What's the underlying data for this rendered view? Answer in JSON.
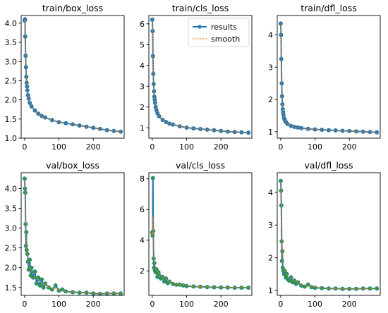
{
  "legend": {
    "results_label": "results",
    "smooth_label": "smooth"
  },
  "colors": {
    "results": "#1f77b4",
    "smooth": "#ff7f0e",
    "marker_val": "#2ca02c",
    "axis": "#000000"
  },
  "chart_data": [
    {
      "type": "line",
      "title": "train/box_loss",
      "xlim": [
        -10,
        290
      ],
      "ylim": [
        1.0,
        4.2
      ],
      "yticks": [
        1.0,
        1.5,
        2.0,
        2.5,
        3.0,
        3.5,
        4.0
      ],
      "ytick_labels": [
        "1.0",
        "1.5",
        "2.0",
        "2.5",
        "3.0",
        "3.5",
        "4.0"
      ],
      "xticks": [
        0,
        100,
        200
      ],
      "xtick_labels": [
        "0",
        "100",
        "200"
      ],
      "legend": false,
      "series": [
        {
          "name": "results",
          "x": [
            0,
            1,
            2,
            3,
            4,
            5,
            6,
            7,
            8,
            10,
            12,
            15,
            20,
            30,
            40,
            50,
            60,
            80,
            100,
            120,
            140,
            160,
            180,
            200,
            220,
            240,
            260,
            280
          ],
          "y": [
            4.07,
            4.1,
            3.65,
            3.15,
            2.85,
            2.6,
            2.45,
            2.35,
            2.25,
            2.12,
            2.03,
            1.92,
            1.83,
            1.72,
            1.64,
            1.58,
            1.54,
            1.47,
            1.42,
            1.39,
            1.36,
            1.33,
            1.3,
            1.27,
            1.24,
            1.21,
            1.19,
            1.17
          ]
        },
        {
          "name": "smooth",
          "x": [
            0,
            1,
            2,
            3,
            4,
            5,
            6,
            7,
            8,
            10,
            12,
            15,
            20,
            30,
            40,
            50,
            60,
            80,
            100,
            120,
            140,
            160,
            180,
            200,
            220,
            240,
            260,
            280
          ],
          "y": [
            4.07,
            4.1,
            3.65,
            3.15,
            2.85,
            2.6,
            2.45,
            2.35,
            2.25,
            2.12,
            2.03,
            1.92,
            1.83,
            1.72,
            1.64,
            1.58,
            1.54,
            1.47,
            1.42,
            1.39,
            1.36,
            1.33,
            1.3,
            1.27,
            1.24,
            1.21,
            1.19,
            1.17
          ]
        }
      ]
    },
    {
      "type": "line",
      "title": "train/cls_loss",
      "xlim": [
        -10,
        290
      ],
      "ylim": [
        0.5,
        6.4
      ],
      "yticks": [
        1,
        2,
        3,
        4,
        5,
        6
      ],
      "ytick_labels": [
        "1",
        "2",
        "3",
        "4",
        "5",
        "6"
      ],
      "xticks": [
        0,
        100,
        200
      ],
      "xtick_labels": [
        "0",
        "100",
        "200"
      ],
      "legend": true,
      "series": [
        {
          "name": "results",
          "x": [
            0,
            1,
            2,
            3,
            4,
            5,
            6,
            7,
            8,
            10,
            12,
            15,
            20,
            30,
            40,
            50,
            60,
            80,
            100,
            120,
            140,
            160,
            180,
            200,
            220,
            240,
            260,
            280
          ],
          "y": [
            6.2,
            5.65,
            4.45,
            3.6,
            3.1,
            2.75,
            2.5,
            2.35,
            2.2,
            2.0,
            1.85,
            1.7,
            1.55,
            1.38,
            1.28,
            1.2,
            1.15,
            1.07,
            1.01,
            0.97,
            0.94,
            0.91,
            0.88,
            0.85,
            0.82,
            0.8,
            0.78,
            0.76
          ]
        },
        {
          "name": "smooth",
          "x": [
            0,
            1,
            2,
            3,
            4,
            5,
            6,
            7,
            8,
            10,
            12,
            15,
            20,
            30,
            40,
            50,
            60,
            80,
            100,
            120,
            140,
            160,
            180,
            200,
            220,
            240,
            260,
            280
          ],
          "y": [
            6.2,
            5.65,
            4.45,
            3.6,
            3.1,
            2.75,
            2.5,
            2.35,
            2.2,
            2.0,
            1.85,
            1.7,
            1.55,
            1.38,
            1.28,
            1.2,
            1.15,
            1.07,
            1.01,
            0.97,
            0.94,
            0.91,
            0.88,
            0.85,
            0.82,
            0.8,
            0.78,
            0.76
          ]
        }
      ]
    },
    {
      "type": "line",
      "title": "train/dfl_loss",
      "xlim": [
        -10,
        290
      ],
      "ylim": [
        0.8,
        4.6
      ],
      "yticks": [
        1,
        2,
        3,
        4
      ],
      "ytick_labels": [
        "1",
        "2",
        "3",
        "4"
      ],
      "xticks": [
        0,
        100,
        200
      ],
      "xtick_labels": [
        "0",
        "100",
        "200"
      ],
      "legend": false,
      "series": [
        {
          "name": "results",
          "x": [
            0,
            1,
            2,
            3,
            4,
            5,
            6,
            7,
            8,
            10,
            12,
            15,
            20,
            30,
            40,
            50,
            60,
            80,
            100,
            120,
            140,
            160,
            180,
            200,
            220,
            240,
            260,
            280
          ],
          "y": [
            4.35,
            4.0,
            3.25,
            2.5,
            2.1,
            1.85,
            1.7,
            1.6,
            1.52,
            1.42,
            1.36,
            1.3,
            1.24,
            1.18,
            1.15,
            1.13,
            1.11,
            1.09,
            1.07,
            1.06,
            1.05,
            1.04,
            1.03,
            1.02,
            1.01,
            1.0,
            0.99,
            0.98
          ]
        },
        {
          "name": "smooth",
          "x": [
            0,
            1,
            2,
            3,
            4,
            5,
            6,
            7,
            8,
            10,
            12,
            15,
            20,
            30,
            40,
            50,
            60,
            80,
            100,
            120,
            140,
            160,
            180,
            200,
            220,
            240,
            260,
            280
          ],
          "y": [
            4.35,
            4.0,
            3.25,
            2.5,
            2.1,
            1.85,
            1.7,
            1.6,
            1.52,
            1.42,
            1.36,
            1.3,
            1.24,
            1.18,
            1.15,
            1.13,
            1.11,
            1.09,
            1.07,
            1.06,
            1.05,
            1.04,
            1.03,
            1.02,
            1.01,
            1.0,
            0.99,
            0.98
          ]
        }
      ]
    },
    {
      "type": "line",
      "title": "val/box_loss",
      "xlim": [
        -10,
        290
      ],
      "ylim": [
        1.3,
        4.4
      ],
      "yticks": [
        1.5,
        2.0,
        2.5,
        3.0,
        3.5,
        4.0
      ],
      "ytick_labels": [
        "1.5",
        "2.0",
        "2.5",
        "3.0",
        "3.5",
        "4.0"
      ],
      "xticks": [
        0,
        100,
        200
      ],
      "xtick_labels": [
        "0",
        "100",
        "200"
      ],
      "legend": false,
      "series": [
        {
          "name": "results",
          "x": [
            0,
            1,
            2,
            3,
            4,
            5,
            6,
            8,
            10,
            12,
            15,
            18,
            20,
            25,
            30,
            35,
            40,
            45,
            50,
            55,
            60,
            70,
            80,
            90,
            100,
            110,
            120,
            140,
            160,
            180,
            200,
            220,
            240,
            260,
            280
          ],
          "y": [
            4.25,
            4.0,
            3.9,
            3.1,
            2.55,
            2.9,
            2.45,
            2.35,
            2.15,
            1.95,
            2.2,
            1.8,
            2.0,
            1.75,
            1.9,
            1.6,
            1.75,
            1.55,
            1.7,
            1.5,
            1.6,
            1.5,
            1.45,
            1.55,
            1.42,
            1.45,
            1.4,
            1.38,
            1.37,
            1.37,
            1.35,
            1.34,
            1.35,
            1.35,
            1.35
          ]
        },
        {
          "name": "smooth",
          "x": [
            0,
            1,
            2,
            3,
            4,
            5,
            6,
            8,
            10,
            12,
            15,
            18,
            20,
            25,
            30,
            35,
            40,
            45,
            50,
            55,
            60,
            70,
            80,
            90,
            100,
            110,
            120,
            140,
            160,
            180,
            200,
            220,
            240,
            260,
            280
          ],
          "y": [
            4.2,
            3.95,
            3.7,
            3.2,
            2.8,
            2.7,
            2.55,
            2.4,
            2.22,
            2.08,
            2.05,
            1.92,
            1.9,
            1.82,
            1.8,
            1.72,
            1.7,
            1.63,
            1.62,
            1.57,
            1.56,
            1.51,
            1.48,
            1.47,
            1.44,
            1.43,
            1.41,
            1.39,
            1.38,
            1.37,
            1.36,
            1.35,
            1.35,
            1.35,
            1.35
          ]
        }
      ]
    },
    {
      "type": "line",
      "title": "val/cls_loss",
      "xlim": [
        -10,
        290
      ],
      "ylim": [
        0.4,
        8.4
      ],
      "yticks": [
        2,
        4,
        6,
        8
      ],
      "ytick_labels": [
        "2",
        "4",
        "6",
        "8"
      ],
      "xticks": [
        0,
        100,
        200
      ],
      "xtick_labels": [
        "0",
        "100",
        "200"
      ],
      "legend": false,
      "series": [
        {
          "name": "results",
          "x": [
            0,
            1,
            2,
            3,
            4,
            5,
            6,
            8,
            10,
            12,
            15,
            18,
            20,
            25,
            30,
            35,
            40,
            45,
            50,
            60,
            70,
            80,
            90,
            100,
            120,
            140,
            160,
            180,
            200,
            220,
            240,
            260,
            280
          ],
          "y": [
            4.5,
            4.3,
            8.05,
            4.6,
            2.8,
            2.2,
            2.5,
            2.0,
            1.9,
            2.1,
            1.6,
            1.9,
            1.7,
            1.5,
            1.6,
            1.3,
            1.5,
            1.2,
            1.3,
            1.15,
            1.1,
            1.1,
            1.05,
            1.0,
            0.98,
            0.96,
            0.94,
            0.93,
            0.92,
            0.91,
            0.9,
            0.9,
            0.9
          ]
        },
        {
          "name": "smooth",
          "x": [
            0,
            1,
            2,
            3,
            4,
            5,
            6,
            8,
            10,
            12,
            15,
            18,
            20,
            25,
            30,
            35,
            40,
            45,
            50,
            60,
            70,
            80,
            90,
            100,
            120,
            140,
            160,
            180,
            200,
            220,
            240,
            260,
            280
          ],
          "y": [
            4.5,
            4.4,
            5.5,
            4.5,
            3.4,
            2.8,
            2.6,
            2.3,
            2.1,
            2.05,
            1.85,
            1.85,
            1.75,
            1.62,
            1.58,
            1.45,
            1.45,
            1.35,
            1.32,
            1.22,
            1.15,
            1.12,
            1.07,
            1.03,
            0.99,
            0.96,
            0.94,
            0.93,
            0.92,
            0.91,
            0.9,
            0.9,
            0.9
          ]
        }
      ]
    },
    {
      "type": "line",
      "title": "val/dfl_loss",
      "xlim": [
        -10,
        290
      ],
      "ylim": [
        0.85,
        4.6
      ],
      "yticks": [
        1,
        2,
        3,
        4
      ],
      "ytick_labels": [
        "1",
        "2",
        "3",
        "4"
      ],
      "xticks": [
        0,
        100,
        200
      ],
      "xtick_labels": [
        "0",
        "100",
        "200"
      ],
      "legend": false,
      "series": [
        {
          "name": "results",
          "x": [
            0,
            1,
            2,
            3,
            4,
            5,
            6,
            8,
            10,
            12,
            15,
            18,
            20,
            25,
            30,
            35,
            40,
            45,
            50,
            60,
            70,
            80,
            90,
            100,
            120,
            140,
            160,
            180,
            200,
            220,
            240,
            260,
            280
          ],
          "y": [
            4.35,
            4.05,
            3.6,
            2.5,
            1.9,
            2.2,
            1.7,
            1.6,
            1.5,
            1.6,
            1.4,
            1.5,
            1.35,
            1.3,
            1.4,
            1.25,
            1.3,
            1.2,
            1.25,
            1.15,
            1.12,
            1.18,
            1.1,
            1.08,
            1.07,
            1.06,
            1.06,
            1.05,
            1.05,
            1.05,
            1.06,
            1.06,
            1.06
          ]
        },
        {
          "name": "smooth",
          "x": [
            0,
            1,
            2,
            3,
            4,
            5,
            6,
            8,
            10,
            12,
            15,
            18,
            20,
            25,
            30,
            35,
            40,
            45,
            50,
            60,
            70,
            80,
            90,
            100,
            120,
            140,
            160,
            180,
            200,
            220,
            240,
            260,
            280
          ],
          "y": [
            4.3,
            4.1,
            3.7,
            3.0,
            2.45,
            2.3,
            2.0,
            1.8,
            1.65,
            1.6,
            1.5,
            1.48,
            1.42,
            1.36,
            1.36,
            1.3,
            1.3,
            1.25,
            1.25,
            1.19,
            1.15,
            1.15,
            1.12,
            1.1,
            1.08,
            1.07,
            1.06,
            1.05,
            1.05,
            1.05,
            1.06,
            1.06,
            1.06
          ]
        }
      ]
    }
  ]
}
